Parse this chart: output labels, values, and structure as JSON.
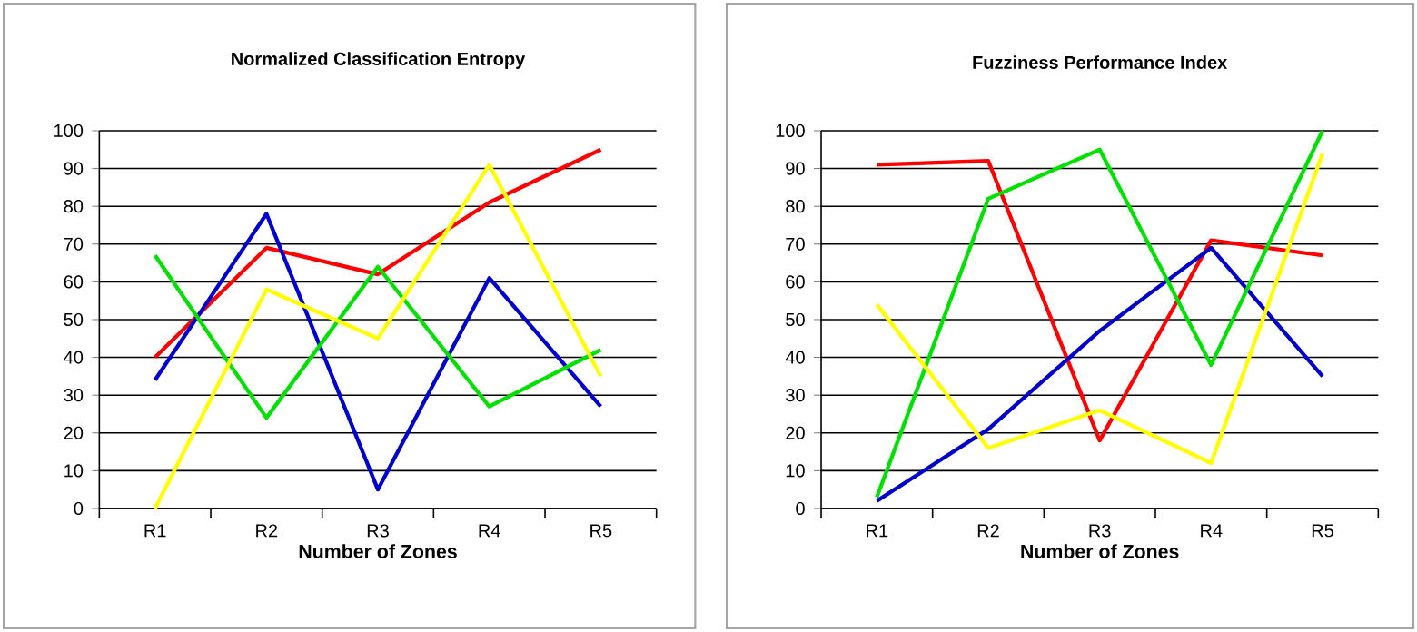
{
  "chart_data": [
    {
      "type": "line",
      "title": "Normalized Classification Entropy",
      "xlabel": "Number of Zones",
      "categories": [
        "R1",
        "R2",
        "R3",
        "R4",
        "R5"
      ],
      "ylim": [
        0,
        100
      ],
      "yticks": [
        0,
        10,
        20,
        30,
        40,
        50,
        60,
        70,
        80,
        90,
        100
      ],
      "grid": "y",
      "marker": "none",
      "line_style": "solid",
      "series": [
        {
          "color": "#ff0000",
          "values": [
            40,
            69,
            62,
            81,
            95
          ]
        },
        {
          "color": "#0000cc",
          "values": [
            34,
            78,
            5,
            61,
            27
          ]
        },
        {
          "color": "#00e000",
          "values": [
            67,
            24,
            64,
            27,
            42
          ]
        },
        {
          "color": "#ffff00",
          "values": [
            0,
            58,
            45,
            91,
            35
          ]
        }
      ]
    },
    {
      "type": "line",
      "title": "Fuzziness Performance Index",
      "xlabel": "Number of Zones",
      "categories": [
        "R1",
        "R2",
        "R3",
        "R4",
        "R5"
      ],
      "ylim": [
        0,
        100
      ],
      "yticks": [
        0,
        10,
        20,
        30,
        40,
        50,
        60,
        70,
        80,
        90,
        100
      ],
      "grid": "y",
      "marker": "none",
      "line_style": "solid",
      "series": [
        {
          "color": "#ff0000",
          "values": [
            91,
            92,
            18,
            71,
            67
          ]
        },
        {
          "color": "#0000cc",
          "values": [
            2,
            21,
            47,
            69,
            35
          ]
        },
        {
          "color": "#00e000",
          "values": [
            3,
            82,
            95,
            38,
            100
          ]
        },
        {
          "color": "#ffff00",
          "values": [
            54,
            16,
            26,
            12,
            94
          ]
        }
      ]
    }
  ]
}
